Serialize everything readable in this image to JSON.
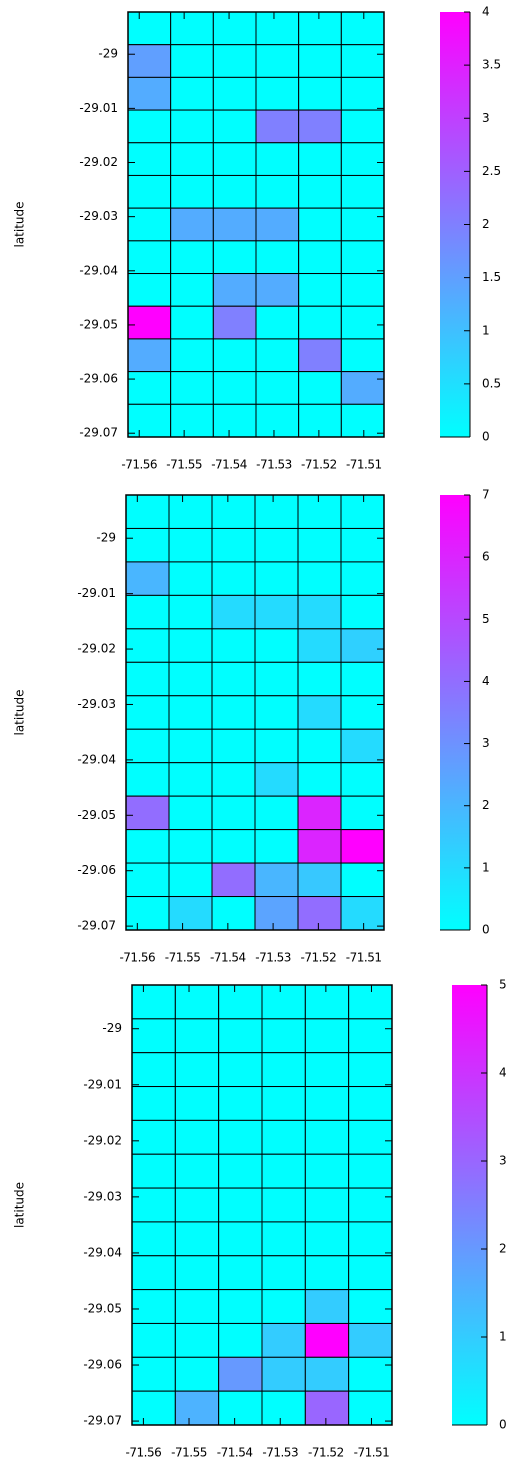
{
  "chart_data": [
    {
      "type": "heatmap",
      "ylabel": "latitude",
      "xlim": [
        -71.5625,
        -71.5055
      ],
      "xticks": [
        -71.56,
        -71.55,
        -71.54,
        -71.53,
        -71.52,
        -71.51
      ],
      "ylim": [
        -29.0707,
        -28.9922
      ],
      "yticks": [
        -29,
        -29.01,
        -29.02,
        -29.03,
        -29.04,
        -29.05,
        -29.06,
        -29.07
      ],
      "colormap": [
        "#00ffff",
        "#ff00ff"
      ],
      "zlim": [
        0,
        4
      ],
      "zticks": [
        0,
        0.5,
        1,
        1.5,
        2,
        2.5,
        3,
        3.5,
        4
      ],
      "z": [
        [
          0,
          0,
          0,
          0,
          0,
          0
        ],
        [
          1.5,
          0,
          0,
          0,
          0,
          0
        ],
        [
          1.3,
          0,
          0,
          0,
          0,
          0
        ],
        [
          0,
          0,
          0,
          2,
          2,
          0
        ],
        [
          0,
          0,
          0,
          0,
          0,
          0
        ],
        [
          0,
          0,
          0,
          0,
          0,
          0
        ],
        [
          0,
          1.3,
          1.3,
          1.3,
          0,
          0
        ],
        [
          0,
          0,
          0,
          0,
          0,
          0
        ],
        [
          0,
          0,
          1.3,
          1.3,
          0,
          0
        ],
        [
          4,
          0,
          2,
          0,
          0,
          0
        ],
        [
          1.3,
          0,
          0,
          0,
          2,
          0
        ],
        [
          0,
          0,
          0,
          0,
          0,
          1.3
        ],
        [
          0,
          0,
          0,
          0,
          0,
          0
        ]
      ]
    },
    {
      "type": "heatmap",
      "ylabel": "latitude",
      "xlim": [
        -71.5625,
        -71.5055
      ],
      "xticks": [
        -71.56,
        -71.55,
        -71.54,
        -71.53,
        -71.52,
        -71.51
      ],
      "ylim": [
        -29.0707,
        -28.9922
      ],
      "yticks": [
        -29,
        -29.01,
        -29.02,
        -29.03,
        -29.04,
        -29.05,
        -29.06,
        -29.07
      ],
      "colormap": [
        "#00ffff",
        "#ff00ff"
      ],
      "zlim": [
        0,
        7
      ],
      "zticks": [
        0,
        1,
        2,
        3,
        4,
        5,
        6,
        7
      ],
      "z": [
        [
          0,
          0,
          0,
          0,
          0,
          0
        ],
        [
          0,
          0,
          0,
          0,
          0,
          0
        ],
        [
          2,
          0,
          0,
          0,
          0,
          0
        ],
        [
          0,
          0,
          1,
          1,
          1,
          0
        ],
        [
          0,
          0,
          0,
          0,
          1,
          1.3
        ],
        [
          0,
          0,
          0,
          0,
          0,
          0
        ],
        [
          0,
          0,
          0,
          0,
          1,
          0
        ],
        [
          0,
          0,
          0,
          0,
          0,
          1
        ],
        [
          0,
          0,
          0,
          1,
          0,
          0
        ],
        [
          4,
          0,
          0,
          0,
          6,
          0
        ],
        [
          0,
          0,
          0,
          0,
          6,
          7
        ],
        [
          0,
          0,
          4,
          2,
          1.5,
          0
        ],
        [
          0,
          1,
          0,
          2.5,
          4,
          1
        ]
      ]
    },
    {
      "type": "heatmap",
      "ylabel": "latitude",
      "xlim": [
        -71.5625,
        -71.5055
      ],
      "xticks": [
        -71.56,
        -71.55,
        -71.54,
        -71.53,
        -71.52,
        -71.51
      ],
      "ylim": [
        -29.0707,
        -28.9922
      ],
      "yticks": [
        -29,
        -29.01,
        -29.02,
        -29.03,
        -29.04,
        -29.05,
        -29.06,
        -29.07
      ],
      "colormap": [
        "#00ffff",
        "#ff00ff"
      ],
      "zlim": [
        0,
        5
      ],
      "zticks": [
        0,
        1,
        2,
        3,
        4,
        5
      ],
      "z": [
        [
          0,
          0,
          0,
          0,
          0,
          0
        ],
        [
          0,
          0,
          0,
          0,
          0,
          0
        ],
        [
          0,
          0,
          0,
          0,
          0,
          0
        ],
        [
          0,
          0,
          0,
          0,
          0,
          0
        ],
        [
          0,
          0,
          0,
          0,
          0,
          0
        ],
        [
          0,
          0,
          0,
          0,
          0,
          0
        ],
        [
          0,
          0,
          0,
          0,
          0,
          0
        ],
        [
          0,
          0,
          0,
          0,
          0,
          0
        ],
        [
          0,
          0,
          0,
          0,
          0,
          0
        ],
        [
          0,
          0,
          0,
          0,
          1,
          0
        ],
        [
          0,
          0,
          0,
          1,
          5,
          1
        ],
        [
          0,
          0,
          2,
          1,
          1,
          0
        ],
        [
          0,
          1.5,
          0,
          0,
          3,
          0
        ]
      ]
    }
  ]
}
